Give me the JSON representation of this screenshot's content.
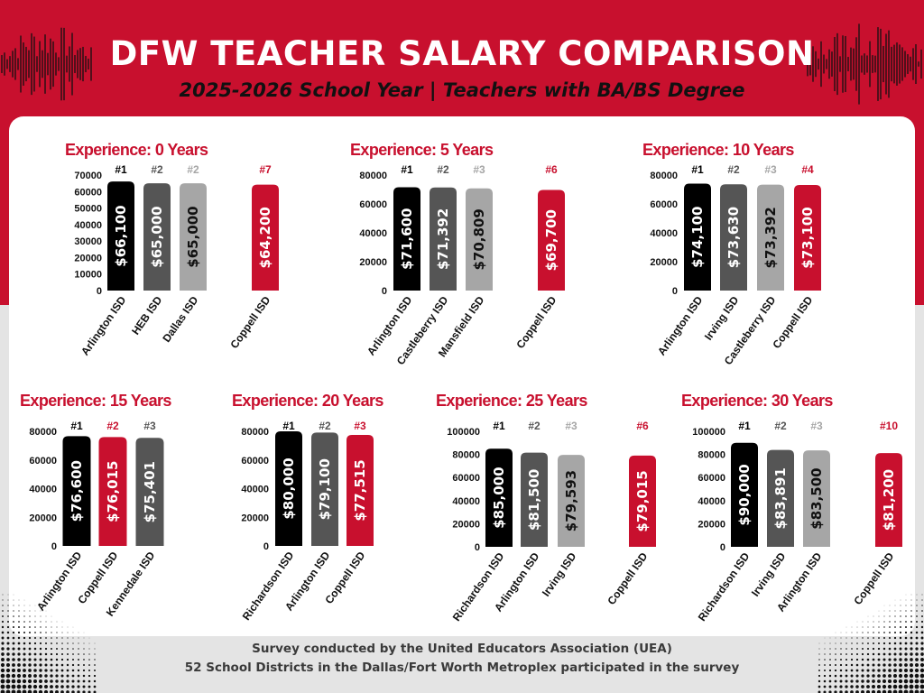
{
  "header": {
    "title": "DFW TEACHER SALARY COMPARISON",
    "subtitle": "2025-2026 School Year | Teachers with BA/BS Degree"
  },
  "footer": {
    "line1": "Survey conducted by the United Educators Association (UEA)",
    "line2": "52 School Districts in the Dallas/Fort Worth Metroplex participated in the survey"
  },
  "colors": {
    "brand_red": "#c8102e",
    "rank1": "#000000",
    "rank2": "#555555",
    "rank3": "#a6a6a6",
    "coppell": "#c8102e"
  },
  "chart_data": [
    {
      "type": "bar",
      "title": "Experience: 0 Years",
      "ylim": [
        0,
        70000
      ],
      "yticks": [
        0,
        10000,
        20000,
        30000,
        40000,
        50000,
        60000,
        70000
      ],
      "bars": [
        {
          "category": "Arlington ISD",
          "value": 66100,
          "label": "$66,100",
          "rank": "#1",
          "color": "rank1"
        },
        {
          "category": "HEB ISD",
          "value": 65000,
          "label": "$65,000",
          "rank": "#2",
          "color": "rank2"
        },
        {
          "category": "Dallas ISD",
          "value": 65000,
          "label": "$65,000",
          "rank": "#2",
          "color": "rank3"
        },
        {
          "category": "Coppell ISD",
          "value": 64200,
          "label": "$64,200",
          "rank": "#7",
          "color": "coppell"
        }
      ]
    },
    {
      "type": "bar",
      "title": "Experience: 5 Years",
      "ylim": [
        0,
        80000
      ],
      "yticks": [
        0,
        20000,
        40000,
        60000,
        80000
      ],
      "bars": [
        {
          "category": "Arlington ISD",
          "value": 71600,
          "label": "$71,600",
          "rank": "#1",
          "color": "rank1"
        },
        {
          "category": "Castleberry ISD",
          "value": 71392,
          "label": "$71,392",
          "rank": "#2",
          "color": "rank2"
        },
        {
          "category": "Mansfield ISD",
          "value": 70809,
          "label": "$70,809",
          "rank": "#3",
          "color": "rank3"
        },
        {
          "category": "Coppell ISD",
          "value": 69700,
          "label": "$69,700",
          "rank": "#6",
          "color": "coppell"
        }
      ]
    },
    {
      "type": "bar",
      "title": "Experience: 10 Years",
      "ylim": [
        0,
        80000
      ],
      "yticks": [
        0,
        20000,
        40000,
        60000,
        80000
      ],
      "bars": [
        {
          "category": "Arlington ISD",
          "value": 74100,
          "label": "$74,100",
          "rank": "#1",
          "color": "rank1"
        },
        {
          "category": "Irving ISD",
          "value": 73630,
          "label": "$73,630",
          "rank": "#2",
          "color": "rank2"
        },
        {
          "category": "Castleberry ISD",
          "value": 73392,
          "label": "$73,392",
          "rank": "#3",
          "color": "rank3"
        },
        {
          "category": "Coppell ISD",
          "value": 73100,
          "label": "$73,100",
          "rank": "#4",
          "color": "coppell"
        }
      ]
    },
    {
      "type": "bar",
      "title": "Experience: 15 Years",
      "ylim": [
        0,
        80000
      ],
      "yticks": [
        0,
        20000,
        40000,
        60000,
        80000
      ],
      "bars": [
        {
          "category": "Arlington ISD",
          "value": 76600,
          "label": "$76,600",
          "rank": "#1",
          "color": "rank1"
        },
        {
          "category": "Coppell ISD",
          "value": 76015,
          "label": "$76,015",
          "rank": "#2",
          "color": "coppell"
        },
        {
          "category": "Kennedale ISD",
          "value": 75401,
          "label": "$75,401",
          "rank": "#3",
          "color": "rank2"
        }
      ]
    },
    {
      "type": "bar",
      "title": "Experience: 20 Years",
      "ylim": [
        0,
        80000
      ],
      "yticks": [
        0,
        20000,
        40000,
        60000,
        80000
      ],
      "bars": [
        {
          "category": "Richardson ISD",
          "value": 80000,
          "label": "$80,000",
          "rank": "#1",
          "color": "rank1"
        },
        {
          "category": "Arlington ISD",
          "value": 79100,
          "label": "$79,100",
          "rank": "#2",
          "color": "rank2"
        },
        {
          "category": "Coppell ISD",
          "value": 77515,
          "label": "$77,515",
          "rank": "#3",
          "color": "coppell"
        }
      ]
    },
    {
      "type": "bar",
      "title": "Experience: 25 Years",
      "ylim": [
        0,
        100000
      ],
      "yticks": [
        0,
        20000,
        40000,
        60000,
        80000,
        100000
      ],
      "bars": [
        {
          "category": "Richardson ISD",
          "value": 85000,
          "label": "$85,000",
          "rank": "#1",
          "color": "rank1"
        },
        {
          "category": "Arlington ISD",
          "value": 81500,
          "label": "$81,500",
          "rank": "#2",
          "color": "rank2"
        },
        {
          "category": "Irving ISD",
          "value": 79593,
          "label": "$79,593",
          "rank": "#3",
          "color": "rank3"
        },
        {
          "category": "Coppell ISD",
          "value": 79015,
          "label": "$79,015",
          "rank": "#6",
          "color": "coppell"
        }
      ]
    },
    {
      "type": "bar",
      "title": "Experience: 30 Years",
      "ylim": [
        0,
        100000
      ],
      "yticks": [
        0,
        20000,
        40000,
        60000,
        80000,
        100000
      ],
      "bars": [
        {
          "category": "Richardson ISD",
          "value": 90000,
          "label": "$90,000",
          "rank": "#1",
          "color": "rank1"
        },
        {
          "category": "Irving ISD",
          "value": 83891,
          "label": "$83,891",
          "rank": "#2",
          "color": "rank2"
        },
        {
          "category": "Arlington ISD",
          "value": 83500,
          "label": "$83,500",
          "rank": "#3",
          "color": "rank3"
        },
        {
          "category": "Coppell ISD",
          "value": 81200,
          "label": "$81,200",
          "rank": "#10",
          "color": "coppell"
        }
      ]
    }
  ]
}
